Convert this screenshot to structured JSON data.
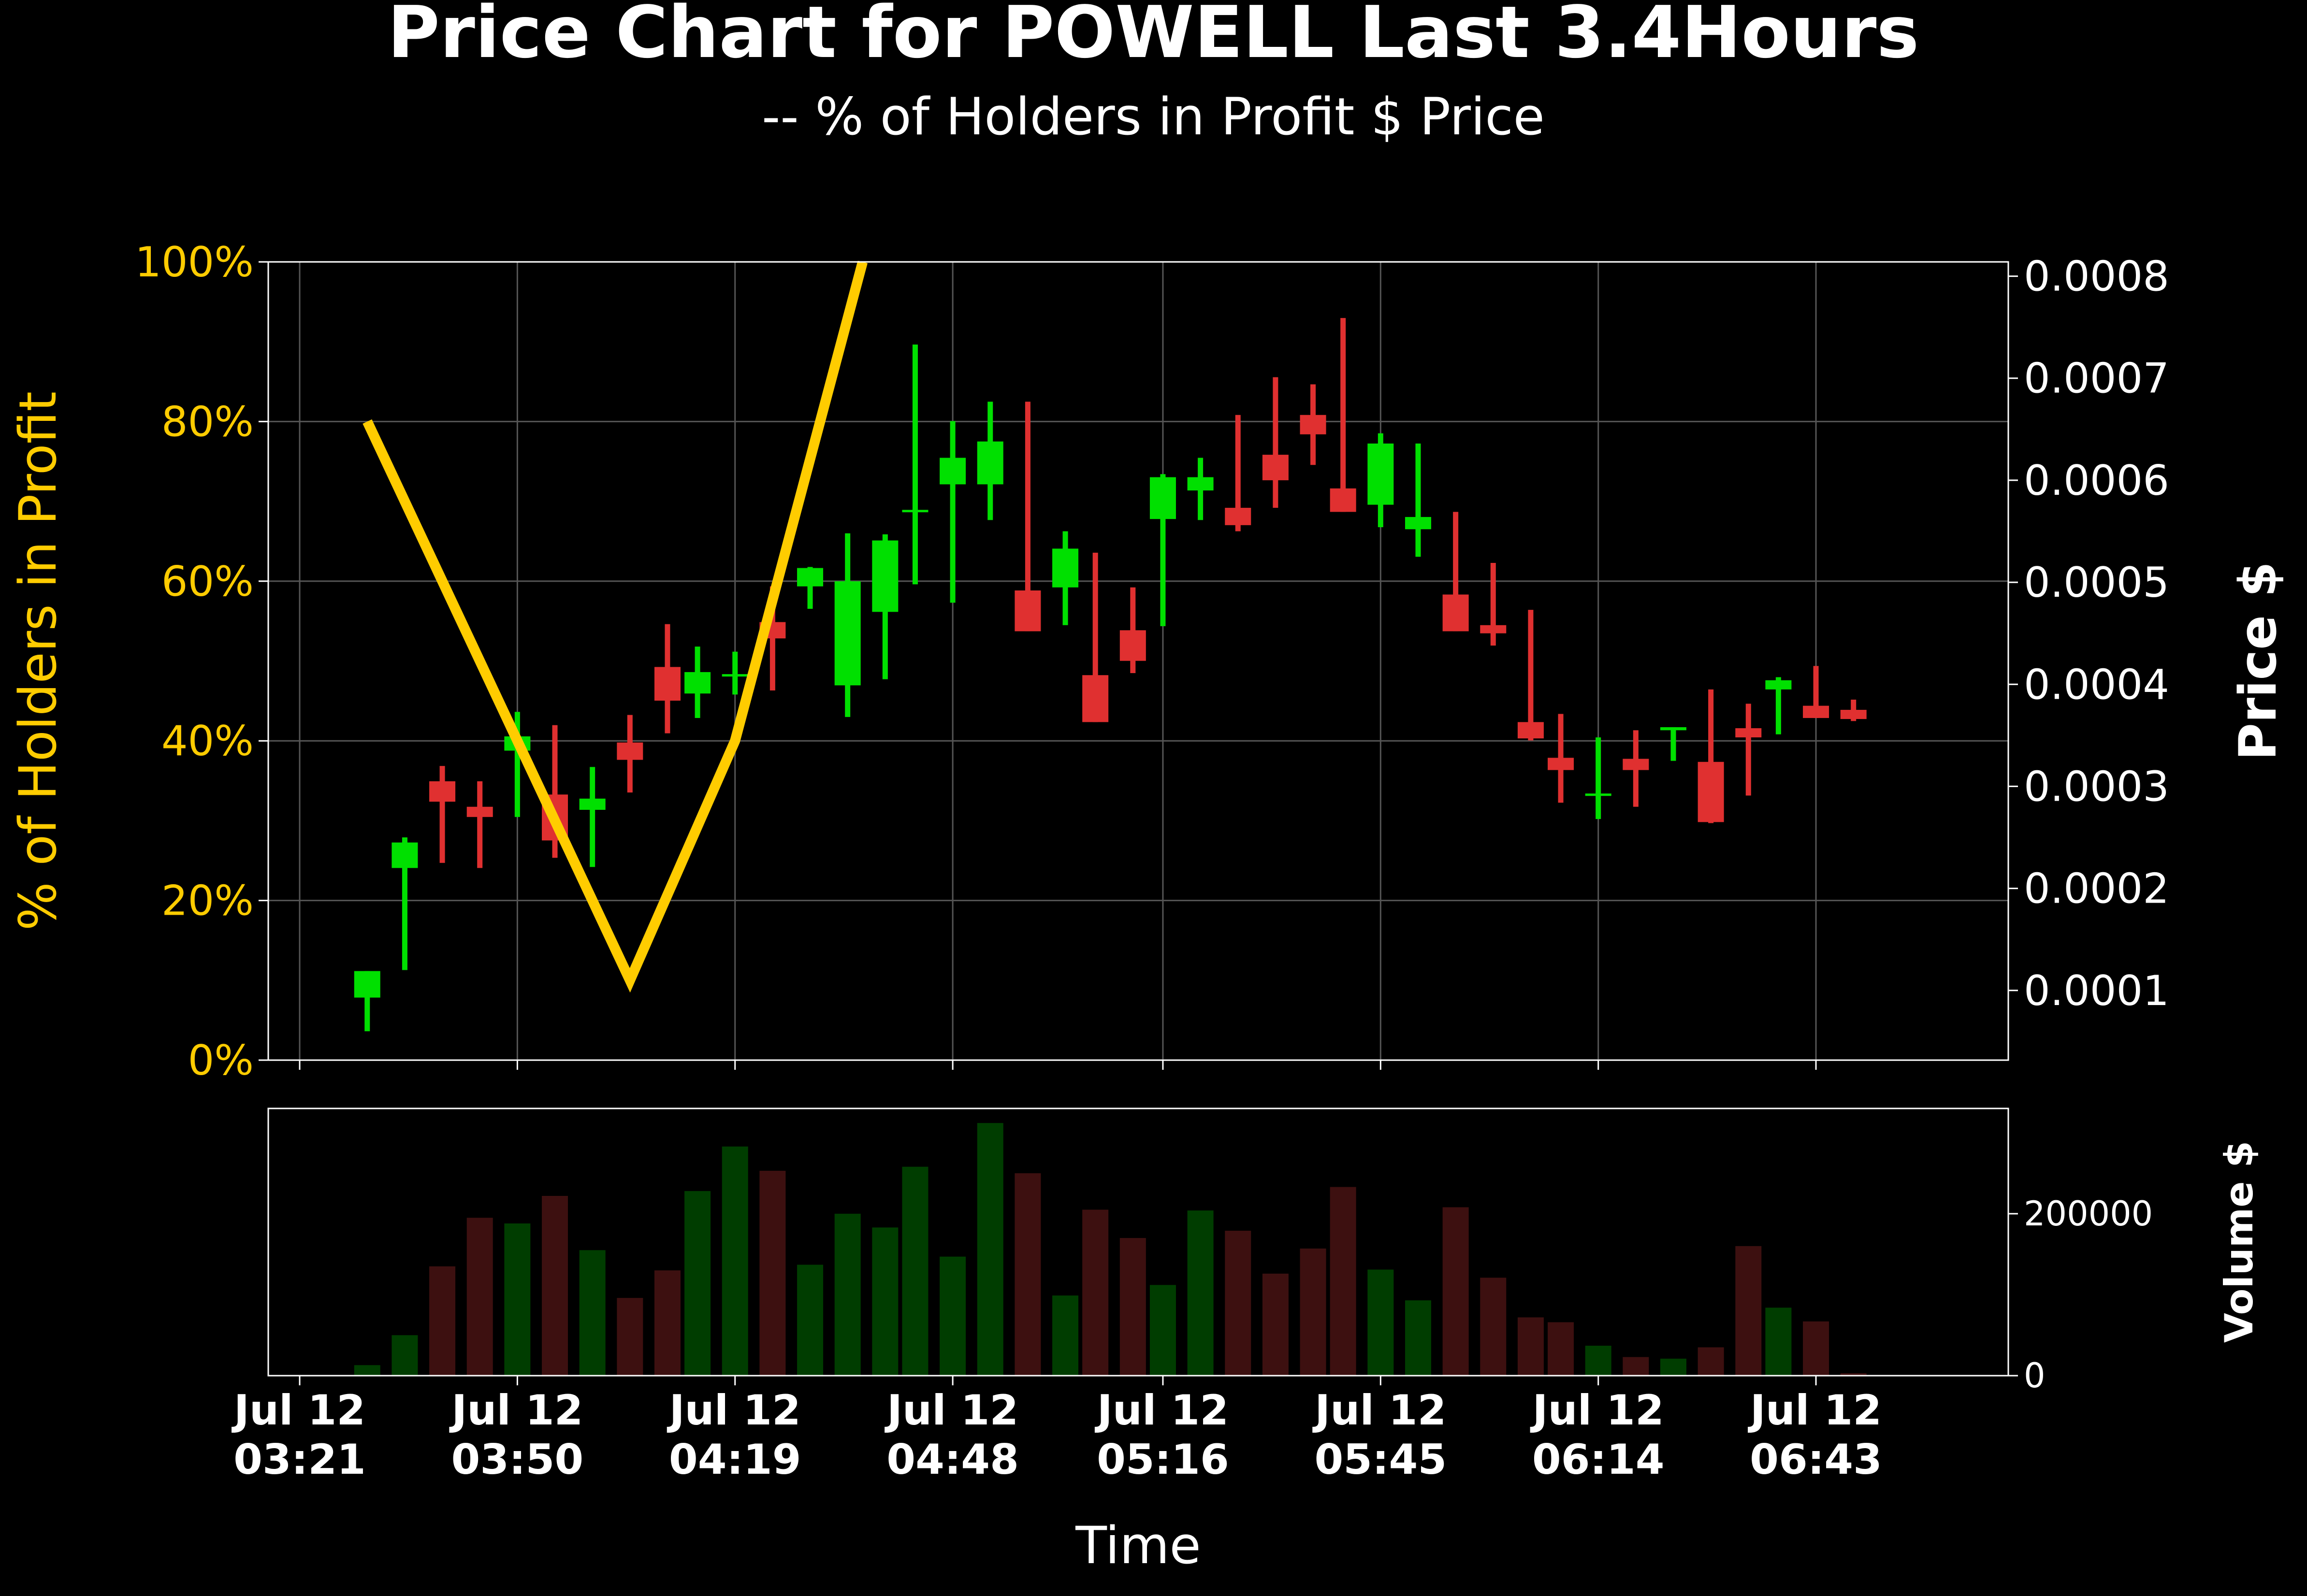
{
  "chart_data": {
    "type": "candlestick",
    "title": "Price Chart for POWELL Last 3.4Hours",
    "subtitle": "-- % of Holders in Profit $ Price",
    "xlabel": "Time",
    "y_left_label": "% of Holders in Profit",
    "y_right_label": "Price $",
    "volume_label": "Volume $",
    "grid": true,
    "colors": {
      "background": "#000000",
      "up": "#00e000",
      "down": "#e03030",
      "up_volume": "#003d00",
      "down_volume": "#3d1010",
      "profit_line": "#ffcc00",
      "axis_text": "#ffffff",
      "left_axis_text": "#ffcc00",
      "grid": "#555555"
    },
    "x_ticks": [
      {
        "date": "Jul 12",
        "time": "03:21"
      },
      {
        "date": "Jul 12",
        "time": "03:50"
      },
      {
        "date": "Jul 12",
        "time": "04:19"
      },
      {
        "date": "Jul 12",
        "time": "04:48"
      },
      {
        "date": "Jul 12",
        "time": "05:16"
      },
      {
        "date": "Jul 12",
        "time": "05:45"
      },
      {
        "date": "Jul 12",
        "time": "06:14"
      },
      {
        "date": "Jul 12",
        "time": "06:43"
      }
    ],
    "y_left_ticks": [
      "0%",
      "20%",
      "40%",
      "60%",
      "80%",
      "100%"
    ],
    "y_left_range": [
      0,
      100
    ],
    "y_right_ticks": [
      "0.0001",
      "0.0002",
      "0.0003",
      "0.0004",
      "0.0005",
      "0.0006",
      "0.0007",
      "0.0008"
    ],
    "y_right_range": [
      3.17e-05,
      0.000814
    ],
    "volume_ticks": [
      "0",
      "200000"
    ],
    "volume_range": [
      0,
      330000
    ],
    "candles": [
      {
        "time": "03:30",
        "open": 9.3e-05,
        "high": 0.000107,
        "low": 6e-05,
        "close": 0.000119,
        "volume": 13000
      },
      {
        "time": "03:35",
        "open": 0.00022,
        "high": 0.00025,
        "low": 0.00012,
        "close": 0.000245,
        "volume": 50000
      },
      {
        "time": "03:40",
        "open": 0.000305,
        "high": 0.00032,
        "low": 0.000225,
        "close": 0.000285,
        "volume": 135000
      },
      {
        "time": "03:45",
        "open": 0.00028,
        "high": 0.000305,
        "low": 0.00022,
        "close": 0.00027,
        "volume": 195000
      },
      {
        "time": "03:50",
        "open": 0.000335,
        "high": 0.000373,
        "low": 0.00027,
        "close": 0.000349,
        "volume": 188000
      },
      {
        "time": "03:55",
        "open": 0.000292,
        "high": 0.00036,
        "low": 0.00023,
        "close": 0.000247,
        "volume": 222000
      },
      {
        "time": "04:00",
        "open": 0.000277,
        "high": 0.000319,
        "low": 0.000221,
        "close": 0.000288,
        "volume": 155000
      },
      {
        "time": "04:05",
        "open": 0.000343,
        "high": 0.00037,
        "low": 0.000294,
        "close": 0.000326,
        "volume": 96000
      },
      {
        "time": "04:10",
        "open": 0.000417,
        "high": 0.000459,
        "low": 0.000352,
        "close": 0.000384,
        "volume": 130000
      },
      {
        "time": "04:14",
        "open": 0.000391,
        "high": 0.000437,
        "low": 0.000367,
        "close": 0.000412,
        "volume": 228000
      },
      {
        "time": "04:19",
        "open": 0.000408,
        "high": 0.000432,
        "low": 0.00039,
        "close": 0.00041,
        "volume": 283000
      },
      {
        "time": "04:24",
        "open": 0.000461,
        "high": 0.000496,
        "low": 0.000394,
        "close": 0.000445,
        "volume": 253000
      },
      {
        "time": "04:29",
        "open": 0.000496,
        "high": 0.000515,
        "low": 0.000474,
        "close": 0.000514,
        "volume": 137000
      },
      {
        "time": "04:34",
        "open": 0.000399,
        "high": 0.000548,
        "low": 0.000368,
        "close": 0.000501,
        "volume": 200000
      },
      {
        "time": "04:39",
        "open": 0.000471,
        "high": 0.000547,
        "low": 0.000405,
        "close": 0.000541,
        "volume": 183000
      },
      {
        "time": "04:43",
        "open": 0.000571,
        "high": 0.000733,
        "low": 0.000498,
        "close": 0.000571,
        "volume": 258000
      },
      {
        "time": "04:48",
        "open": 0.000596,
        "high": 0.000658,
        "low": 0.00048,
        "close": 0.000622,
        "volume": 147000
      },
      {
        "time": "04:53",
        "open": 0.000596,
        "high": 0.000677,
        "low": 0.000561,
        "close": 0.000638,
        "volume": 312000
      },
      {
        "time": "04:58",
        "open": 0.000492,
        "high": 0.000677,
        "low": 0.000461,
        "close": 0.000452,
        "volume": 250000
      },
      {
        "time": "05:03",
        "open": 0.000495,
        "high": 0.00055,
        "low": 0.000458,
        "close": 0.000533,
        "volume": 99000
      },
      {
        "time": "05:07",
        "open": 0.000409,
        "high": 0.000529,
        "low": 0.000409,
        "close": 0.000363,
        "volume": 205000
      },
      {
        "time": "05:12",
        "open": 0.000453,
        "high": 0.000495,
        "low": 0.000411,
        "close": 0.000423,
        "volume": 170000
      },
      {
        "time": "05:16",
        "open": 0.000562,
        "high": 0.000606,
        "low": 0.000457,
        "close": 0.000603,
        "volume": 112000
      },
      {
        "time": "05:21",
        "open": 0.00059,
        "high": 0.000622,
        "low": 0.000561,
        "close": 0.000603,
        "volume": 204000
      },
      {
        "time": "05:26",
        "open": 0.000573,
        "high": 0.000664,
        "low": 0.00055,
        "close": 0.000556,
        "volume": 179000
      },
      {
        "time": "05:31",
        "open": 0.000625,
        "high": 0.000701,
        "low": 0.000573,
        "close": 0.0006,
        "volume": 126000
      },
      {
        "time": "05:36",
        "open": 0.000664,
        "high": 0.000694,
        "low": 0.000615,
        "close": 0.000645,
        "volume": 157000
      },
      {
        "time": "05:40",
        "open": 0.000592,
        "high": 0.000759,
        "low": 0.000573,
        "close": 0.000569,
        "volume": 233000
      },
      {
        "time": "05:45",
        "open": 0.000576,
        "high": 0.000646,
        "low": 0.000554,
        "close": 0.000636,
        "volume": 131000
      },
      {
        "time": "05:50",
        "open": 0.000552,
        "high": 0.000636,
        "low": 0.000525,
        "close": 0.000564,
        "volume": 93000
      },
      {
        "time": "05:55",
        "open": 0.000488,
        "high": 0.000569,
        "low": 0.000458,
        "close": 0.000452,
        "volume": 208000
      },
      {
        "time": "06:00",
        "open": 0.000458,
        "high": 0.000519,
        "low": 0.000438,
        "close": 0.00045,
        "volume": 121000
      },
      {
        "time": "06:05",
        "open": 0.000363,
        "high": 0.000473,
        "low": 0.000345,
        "close": 0.000347,
        "volume": 72000
      },
      {
        "time": "06:09",
        "open": 0.000328,
        "high": 0.000371,
        "low": 0.000284,
        "close": 0.000316,
        "volume": 66000
      },
      {
        "time": "06:14",
        "open": 0.000293,
        "high": 0.000348,
        "low": 0.000268,
        "close": 0.000293,
        "volume": 37000
      },
      {
        "time": "06:19",
        "open": 0.000327,
        "high": 0.000355,
        "low": 0.00028,
        "close": 0.000316,
        "volume": 23000
      },
      {
        "time": "06:24",
        "open": 0.000355,
        "high": 0.000358,
        "low": 0.000325,
        "close": 0.000358,
        "volume": 21000
      },
      {
        "time": "06:29",
        "open": 0.000324,
        "high": 0.000395,
        "low": 0.000264,
        "close": 0.000265,
        "volume": 35000
      },
      {
        "time": "06:34",
        "open": 0.000357,
        "high": 0.000381,
        "low": 0.000291,
        "close": 0.000348,
        "volume": 160000
      },
      {
        "time": "06:38",
        "open": 0.000395,
        "high": 0.000407,
        "low": 0.000351,
        "close": 0.000404,
        "volume": 84000
      },
      {
        "time": "06:43",
        "open": 0.000379,
        "high": 0.000418,
        "low": 0.000367,
        "close": 0.000367,
        "volume": 67000
      },
      {
        "time": "06:48",
        "open": 0.000375,
        "high": 0.000385,
        "low": 0.000364,
        "close": 0.000366,
        "volume": 3000
      }
    ],
    "profit_line": {
      "name": "% of Holders in Profit",
      "points": [
        {
          "time": "03:30",
          "value": 80
        },
        {
          "time": "03:50",
          "value": 40
        },
        {
          "time": "04:05",
          "value": 10
        },
        {
          "time": "04:19",
          "value": 40
        },
        {
          "time": "04:36",
          "value": 100
        }
      ]
    }
  }
}
